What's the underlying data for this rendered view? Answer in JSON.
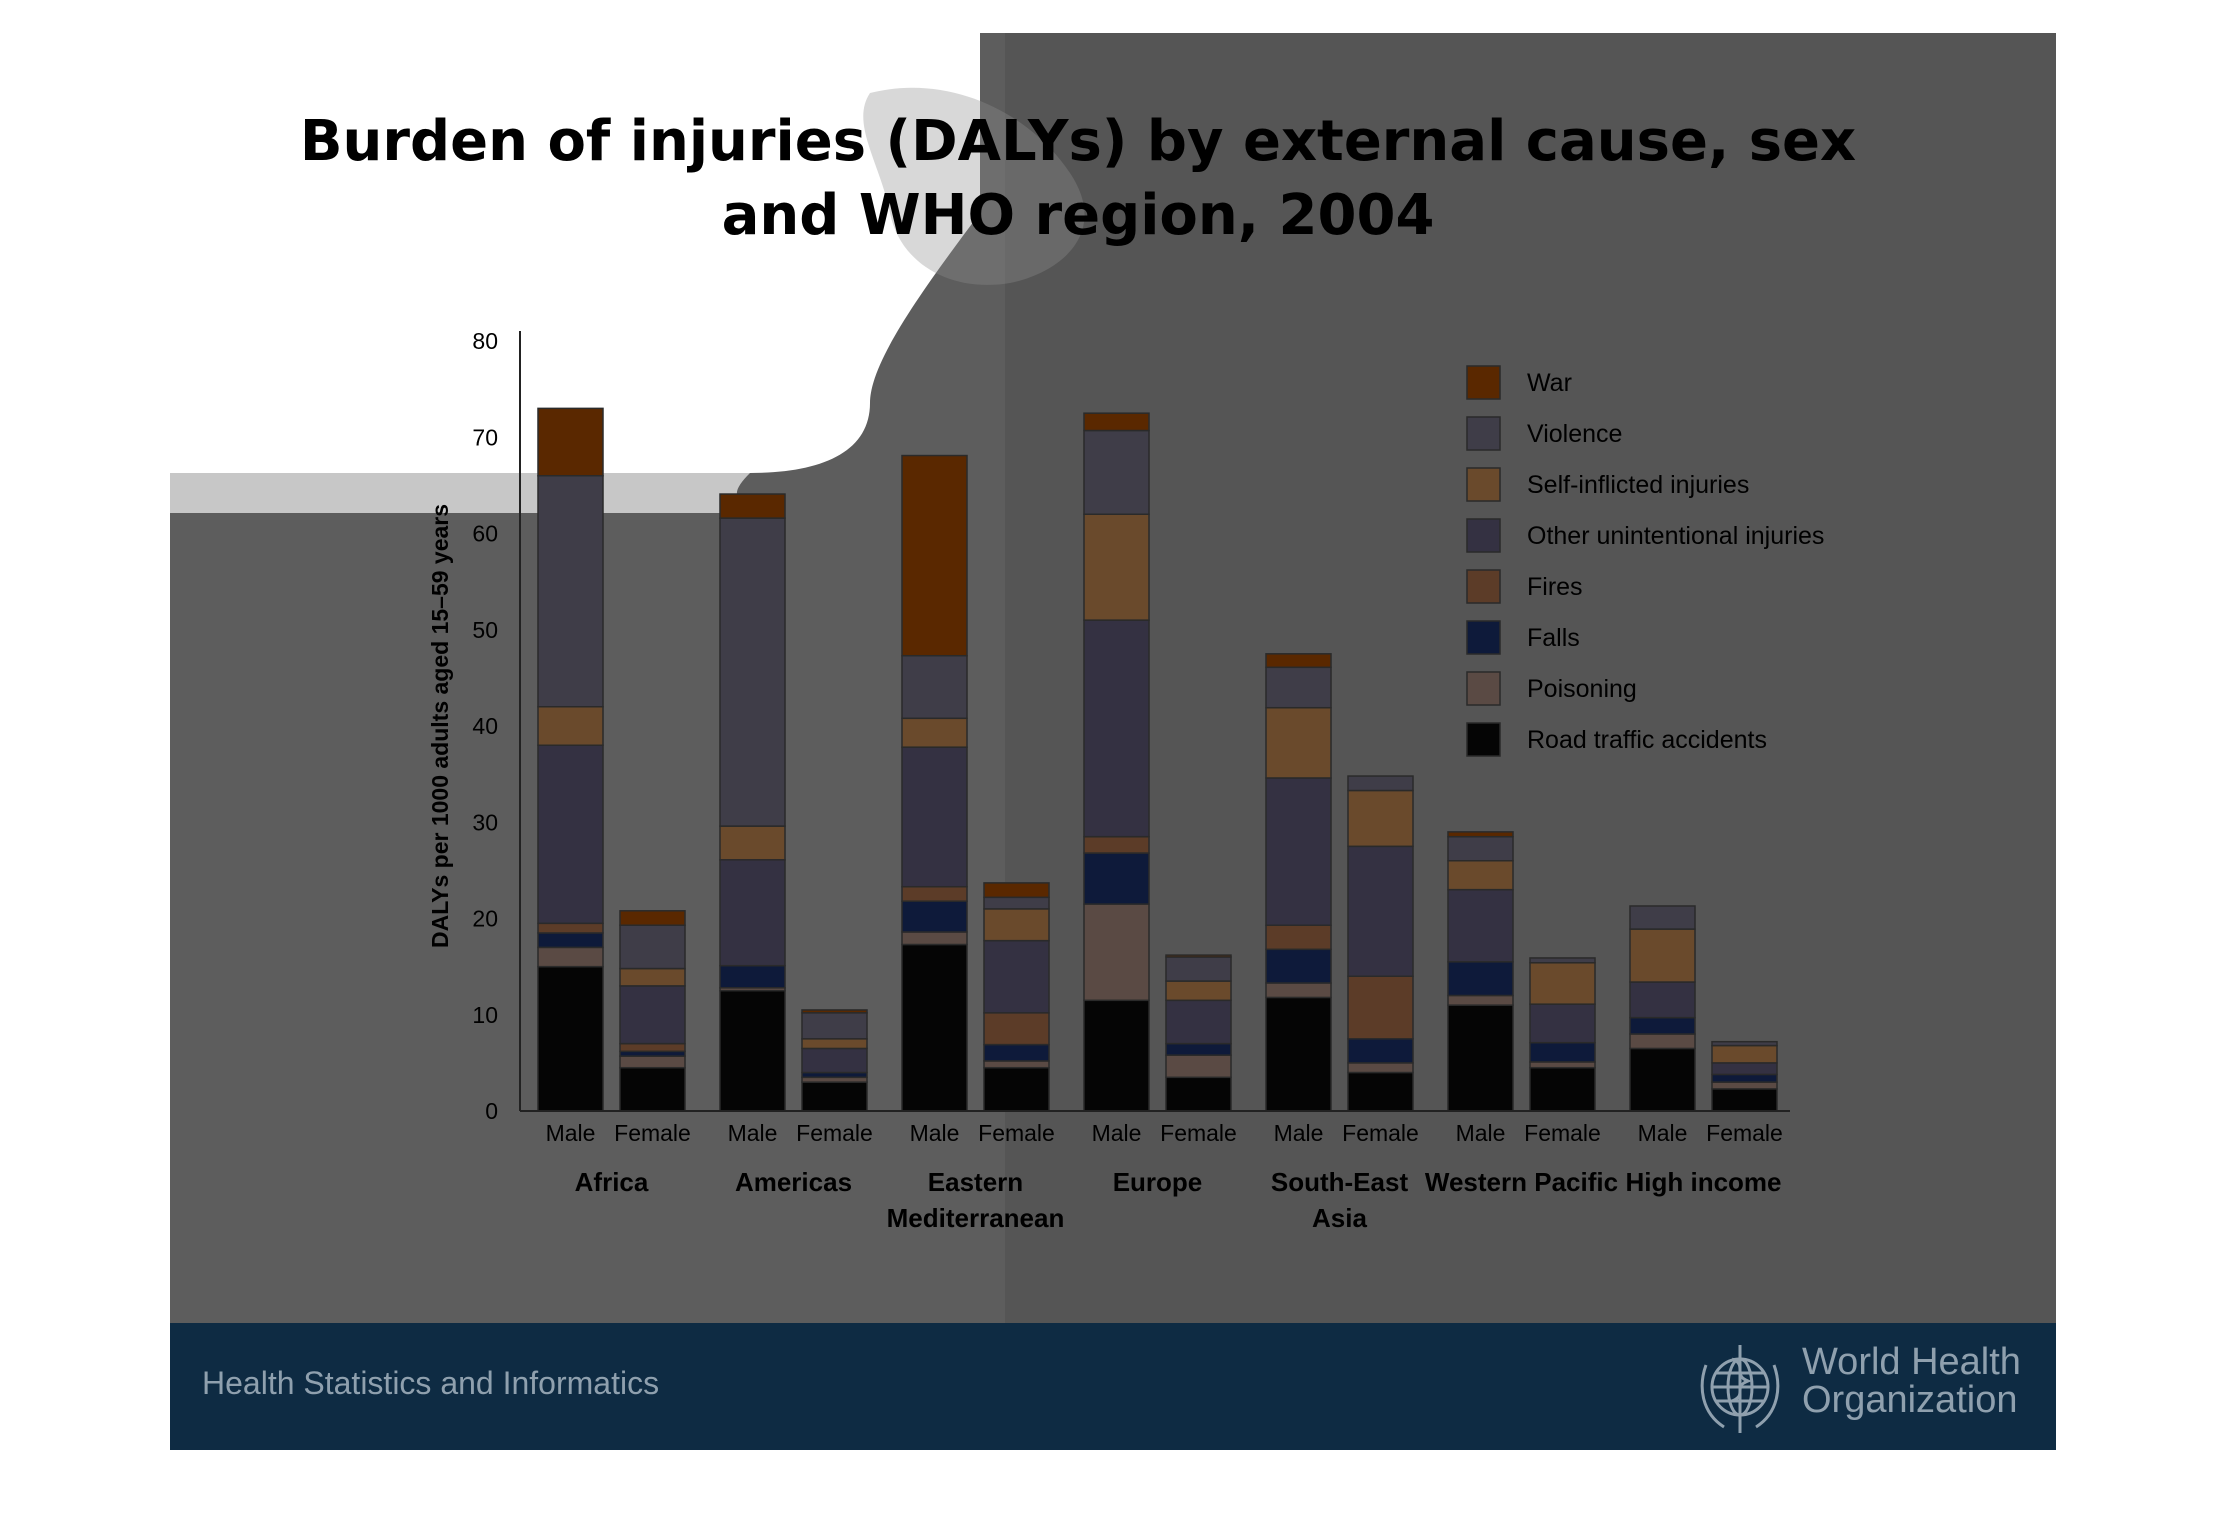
{
  "slide": {
    "title_lines": [
      "Burden of injuries (DALYs) by external cause, sex",
      "and WHO region, 2004"
    ],
    "footer_text": "Health Statistics and Informatics",
    "org_name_lines": [
      "World Health",
      "Organization"
    ]
  },
  "colors": {
    "slide_bg": "#5d5d5d",
    "footer_bg": "#0e2b43",
    "footer_text": "#8fa0ae"
  },
  "chart_data": {
    "type": "bar",
    "stacked": true,
    "title": "Burden of injuries (DALYs) by external cause, sex and WHO region, 2004",
    "ylabel": "DALYs per 1000 adults aged 15–59 years",
    "ylim": [
      0,
      80
    ],
    "yticks": [
      0,
      10,
      20,
      30,
      40,
      50,
      60,
      70,
      80
    ],
    "groups": [
      "Africa",
      "Americas",
      "Eastern Mediterranean",
      "Europe",
      "South-East Asia",
      "Western Pacific",
      "High income"
    ],
    "group_label_lines": [
      [
        "Africa"
      ],
      [
        "Americas"
      ],
      [
        "Eastern",
        "Mediterranean"
      ],
      [
        "Europe"
      ],
      [
        "South-East",
        "Asia"
      ],
      [
        "Western Pacific"
      ],
      [
        "High income"
      ]
    ],
    "sexes": [
      "Male",
      "Female"
    ],
    "categories": [
      "Africa Male",
      "Africa Female",
      "Americas Male",
      "Americas Female",
      "Eastern Mediterranean Male",
      "Eastern Mediterranean Female",
      "Europe Male",
      "Europe Female",
      "South-East Asia Male",
      "South-East Asia Female",
      "Western Pacific Male",
      "Western Pacific Female",
      "High income Male",
      "High income Female"
    ],
    "legend_position": "right",
    "series": [
      {
        "name": "Road traffic accidents",
        "color": "#050505",
        "values": [
          15.0,
          4.5,
          12.5,
          3.0,
          17.3,
          4.5,
          11.5,
          3.5,
          11.8,
          4.0,
          11.0,
          4.5,
          6.5,
          2.3
        ]
      },
      {
        "name": "Poisoning",
        "color": "#5a4a44",
        "values": [
          2.0,
          1.2,
          0.3,
          0.5,
          1.3,
          0.7,
          10.0,
          2.3,
          1.5,
          1.0,
          1.0,
          0.6,
          1.5,
          0.7
        ]
      },
      {
        "name": "Falls",
        "color": "#0e1a3a",
        "values": [
          1.5,
          0.5,
          2.3,
          0.5,
          3.2,
          1.7,
          5.3,
          1.2,
          3.5,
          2.5,
          3.5,
          2.0,
          1.7,
          0.8
        ]
      },
      {
        "name": "Fires",
        "color": "#5c3c28",
        "values": [
          1.0,
          0.8,
          0.0,
          0.0,
          1.5,
          3.3,
          1.7,
          0.0,
          2.5,
          6.5,
          0.0,
          0.0,
          0.0,
          0.0
        ]
      },
      {
        "name": "Other unintentional injuries",
        "color": "#343142",
        "values": [
          18.5,
          6.0,
          11.0,
          2.5,
          14.5,
          7.5,
          22.5,
          4.5,
          15.3,
          13.5,
          7.5,
          4.0,
          3.7,
          1.2
        ]
      },
      {
        "name": "Self-inflicted injuries",
        "color": "#6a4a2c",
        "values": [
          4.0,
          1.8,
          3.5,
          1.0,
          3.0,
          3.3,
          11.0,
          2.0,
          7.3,
          5.8,
          3.0,
          4.3,
          5.5,
          1.8
        ]
      },
      {
        "name": "Violence",
        "color": "#3f3d48",
        "values": [
          24.0,
          4.5,
          32.0,
          2.7,
          6.5,
          1.2,
          8.7,
          2.5,
          4.2,
          1.5,
          2.5,
          0.5,
          2.4,
          0.4
        ]
      },
      {
        "name": "War",
        "color": "#5a2800",
        "values": [
          7.0,
          1.5,
          2.5,
          0.3,
          20.8,
          1.5,
          1.8,
          0.2,
          1.4,
          0.0,
          0.5,
          0.0,
          0.0,
          0.0
        ]
      }
    ]
  }
}
